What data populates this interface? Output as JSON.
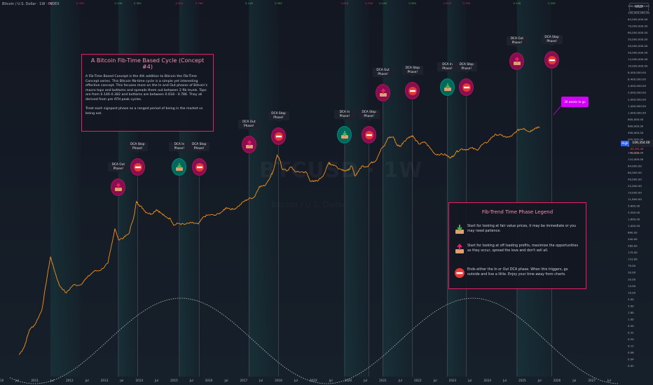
{
  "header": {
    "symbol_text": "Bitcoin / U.S. Dollar · 1W · INDEX"
  },
  "currency_button": "USD",
  "watermark": {
    "ticker": "BTCUSD · 1W",
    "sub": "Bitcoin / U.S. Dollar"
  },
  "info_box": {
    "title": "A Bitcoin Fib-Time Based Cycle (Concept #4)",
    "text": "A Fib-Time Based Concept is the 4th addition to Bitcoin the Fib-Time Concept series. This Bitcoin fib-time cycle is a simple yet interesting effective concept. This focuses more on the In and Out phases of Bitcoin's macro tops and bottoms and spreads them out between 2 fib levels. Tops are from 0.146-0.382 and bottoms are between 0.618 - 0.786. They all derived from pre ATH peak cycles.\n\nTreat each signpost phase as a ranged period of being in the market vs being out."
  },
  "legend": {
    "title": "Fib-Trend Time Phase Legend",
    "items": [
      {
        "icon": "dca-in-icon",
        "text": "Start for looking at fair value prices, it may be immediate or you may need patience."
      },
      {
        "icon": "dca-out-icon",
        "text": "Start for looking at off loading profits, maximize the opportunities as they occur, spread the love and don't sell all."
      },
      {
        "icon": "stop-icon",
        "text": "Ends either the In or Out DCA phase. When this triggers, go outside and live a little. Enjoy your time away from charts."
      }
    ]
  },
  "signposts": [
    {
      "label": "DCA Out Phase!",
      "kind": "out",
      "year": 2013.4
    },
    {
      "label": "DCA Stop Phase!",
      "kind": "stop",
      "year": 2013.95
    },
    {
      "label": "DCA In Phase!",
      "kind": "in",
      "year": 2015.15
    },
    {
      "label": "DCA Stop Phase!",
      "kind": "stop",
      "year": 2015.72
    },
    {
      "label": "DCA Out Phase!",
      "kind": "out",
      "year": 2017.15
    },
    {
      "label": "DCA Stop Phase!",
      "kind": "stop",
      "year": 2018.0
    },
    {
      "label": "DCA In Phase!",
      "kind": "in",
      "year": 2019.9
    },
    {
      "label": "DCA Stop Phase!",
      "kind": "stop",
      "year": 2020.6
    },
    {
      "label": "DCA Out Phase!",
      "kind": "out",
      "year": 2021.0
    },
    {
      "label": "DCA Stop Phase!",
      "kind": "stop",
      "year": 2021.85
    },
    {
      "label": "DCA In Phase!",
      "kind": "in",
      "year": 2022.85
    },
    {
      "label": "DCA Stop Phase!",
      "kind": "stop",
      "year": 2023.4
    },
    {
      "label": "DCA Out Phase!",
      "kind": "out",
      "year": 2024.85
    },
    {
      "label": "DCA Stop Phase!",
      "kind": "stop",
      "year": 2025.85
    }
  ],
  "top_fib_labels": [
    {
      "year": 2011.45,
      "text": "0.38",
      "color": "#e91e63"
    },
    {
      "year": 2012.3,
      "text": "0.786",
      "color": "#e91e63"
    },
    {
      "year": 2013.4,
      "text": "0.146",
      "color": "#4caf50"
    },
    {
      "year": 2013.95,
      "text": "0.382",
      "color": "#4caf50"
    },
    {
      "year": 2015.15,
      "text": "0.618",
      "color": "#e91e63"
    },
    {
      "year": 2015.72,
      "text": "0.786",
      "color": "#e91e63"
    },
    {
      "year": 2017.15,
      "text": "0.146",
      "color": "#4caf50"
    },
    {
      "year": 2018.0,
      "text": "0.382",
      "color": "#4caf50"
    },
    {
      "year": 2019.9,
      "text": "0.618",
      "color": "#e91e63"
    },
    {
      "year": 2020.6,
      "text": "0.786",
      "color": "#e91e63"
    },
    {
      "year": 2021.0,
      "text": "0.146",
      "color": "#4caf50"
    },
    {
      "year": 2021.85,
      "text": "0.382",
      "color": "#4caf50"
    },
    {
      "year": 2022.85,
      "text": "0.618",
      "color": "#e91e63"
    },
    {
      "year": 2023.4,
      "text": "0.786",
      "color": "#e91e63"
    },
    {
      "year": 2024.85,
      "text": "0.146",
      "color": "#4caf50"
    },
    {
      "year": 2025.85,
      "text": "0.382",
      "color": "#4caf50"
    }
  ],
  "note_badge": "30 weeks to go",
  "price_labels": {
    "high_badge": "High",
    "current_price": "109,354.00",
    "sub1": "84,354.48",
    "sub2": "3d 17h"
  },
  "colors": {
    "background": "#131722",
    "price_line": "#f7931a",
    "cycle_line": "#d1d4dc",
    "out": "#880e4f",
    "in": "#00695c",
    "accent": "#e91e63"
  },
  "chart_data": {
    "type": "line",
    "y_scale": "log",
    "x_ticks": [
      "2010",
      "Jul",
      "2011",
      "Jul",
      "2012",
      "Jul",
      "2013",
      "Jul",
      "2014",
      "Jul",
      "2015",
      "Jul",
      "2016",
      "Jul",
      "2017",
      "Jul",
      "2018",
      "Jul",
      "2019",
      "Jul",
      "2020",
      "Jul",
      "2021",
      "Jul",
      "2022",
      "Jul",
      "2023",
      "Jul",
      "2024",
      "Jul",
      "2025",
      "Jul",
      "2026",
      "Jul",
      "2027",
      "Jul"
    ],
    "x_range": [
      2010.0,
      2027.75
    ],
    "y_ticks": [
      "120,000,000.00",
      "100,000,000.00",
      "84,000,000.00",
      "70,000,000.00",
      "60,000,000.00",
      "50,000,000.00",
      "40,000,000.00",
      "20,000,000.00",
      "14,000,000.00",
      "10,000,000.00",
      "8,400,000.00",
      "6,400,000.00",
      "4,000,000.00",
      "3,000,000.00",
      "2,000,000.00",
      "1,400,000.00",
      "1,000,000.00",
      "800,000.00",
      "600,000.00",
      "400,000.00",
      "300,000.00",
      "200,000.00",
      "140,000.00",
      "110,000.00",
      "84,000.00",
      "60,000.00",
      "40,000.00",
      "22,000.00",
      "14,000.00",
      "11,800.00",
      "5,800.00",
      "3,500.00",
      "1,600.00",
      "1,000.00",
      "680.00",
      "440.00",
      "280.00",
      "170.00",
      "110.00",
      "70.00",
      "30.00",
      "20.00",
      "14.00",
      "10.00",
      "5.00",
      "3.00",
      "1.80",
      "1.00",
      "0.50",
      "0.32",
      "0.20",
      "0.12",
      "0.06",
      "0.04",
      "0.02"
    ],
    "y_range": [
      0.015,
      160000000
    ],
    "series": [
      {
        "name": "BTCUSD",
        "points": [
          [
            2010.55,
            0.06
          ],
          [
            2010.7,
            0.1
          ],
          [
            2010.85,
            0.3
          ],
          [
            2011.0,
            0.4
          ],
          [
            2011.2,
            1.0
          ],
          [
            2011.35,
            8
          ],
          [
            2011.45,
            30
          ],
          [
            2011.55,
            14
          ],
          [
            2011.7,
            5
          ],
          [
            2011.9,
            3
          ],
          [
            2012.1,
            5
          ],
          [
            2012.3,
            5
          ],
          [
            2012.5,
            8
          ],
          [
            2012.7,
            12
          ],
          [
            2012.9,
            13
          ],
          [
            2013.1,
            20
          ],
          [
            2013.25,
            100
          ],
          [
            2013.3,
            180
          ],
          [
            2013.4,
            90
          ],
          [
            2013.55,
            100
          ],
          [
            2013.7,
            130
          ],
          [
            2013.85,
            400
          ],
          [
            2013.92,
            1000
          ],
          [
            2014.0,
            800
          ],
          [
            2014.1,
            650
          ],
          [
            2014.2,
            500
          ],
          [
            2014.35,
            450
          ],
          [
            2014.5,
            600
          ],
          [
            2014.6,
            500
          ],
          [
            2014.75,
            380
          ],
          [
            2014.9,
            330
          ],
          [
            2015.0,
            220
          ],
          [
            2015.1,
            250
          ],
          [
            2015.3,
            235
          ],
          [
            2015.5,
            260
          ],
          [
            2015.7,
            240
          ],
          [
            2015.85,
            380
          ],
          [
            2016.0,
            430
          ],
          [
            2016.2,
            420
          ],
          [
            2016.4,
            540
          ],
          [
            2016.5,
            680
          ],
          [
            2016.7,
            600
          ],
          [
            2016.85,
            740
          ],
          [
            2017.0,
            1000
          ],
          [
            2017.15,
            1200
          ],
          [
            2017.3,
            1300
          ],
          [
            2017.45,
            2600
          ],
          [
            2017.6,
            2700
          ],
          [
            2017.75,
            4500
          ],
          [
            2017.85,
            7000
          ],
          [
            2017.96,
            19000
          ],
          [
            2018.05,
            13000
          ],
          [
            2018.1,
            8000
          ],
          [
            2018.25,
            7000
          ],
          [
            2018.35,
            9000
          ],
          [
            2018.5,
            6500
          ],
          [
            2018.65,
            6500
          ],
          [
            2018.8,
            6400
          ],
          [
            2018.9,
            3800
          ],
          [
            2019.0,
            3500
          ],
          [
            2019.15,
            3900
          ],
          [
            2019.3,
            5500
          ],
          [
            2019.45,
            12000
          ],
          [
            2019.5,
            10500
          ],
          [
            2019.6,
            10000
          ],
          [
            2019.75,
            8000
          ],
          [
            2019.9,
            7200
          ],
          [
            2020.0,
            7200
          ],
          [
            2020.1,
            9500
          ],
          [
            2020.2,
            5000
          ],
          [
            2020.3,
            7000
          ],
          [
            2020.4,
            9500
          ],
          [
            2020.55,
            9200
          ],
          [
            2020.65,
            11500
          ],
          [
            2020.8,
            13500
          ],
          [
            2020.95,
            29000
          ],
          [
            2021.05,
            35000
          ],
          [
            2021.15,
            58000
          ],
          [
            2021.3,
            60000
          ],
          [
            2021.4,
            36000
          ],
          [
            2021.5,
            33000
          ],
          [
            2021.6,
            45000
          ],
          [
            2021.75,
            60000
          ],
          [
            2021.85,
            65000
          ],
          [
            2021.95,
            47000
          ],
          [
            2022.05,
            38000
          ],
          [
            2022.2,
            44000
          ],
          [
            2022.35,
            30000
          ],
          [
            2022.5,
            20000
          ],
          [
            2022.65,
            20000
          ],
          [
            2022.8,
            19500
          ],
          [
            2022.9,
            16500
          ],
          [
            2023.0,
            17000
          ],
          [
            2023.1,
            23000
          ],
          [
            2023.25,
            28000
          ],
          [
            2023.4,
            27000
          ],
          [
            2023.55,
            30000
          ],
          [
            2023.7,
            26000
          ],
          [
            2023.85,
            37000
          ],
          [
            2024.0,
            43000
          ],
          [
            2024.15,
            62000
          ],
          [
            2024.25,
            70000
          ],
          [
            2024.4,
            67000
          ],
          [
            2024.55,
            58000
          ],
          [
            2024.7,
            63000
          ],
          [
            2024.85,
            90000
          ],
          [
            2024.95,
            98000
          ],
          [
            2025.05,
            104000
          ],
          [
            2025.2,
            83000
          ],
          [
            2025.3,
            95000
          ],
          [
            2025.4,
            108000
          ],
          [
            2025.5,
            109354
          ]
        ]
      }
    ]
  }
}
